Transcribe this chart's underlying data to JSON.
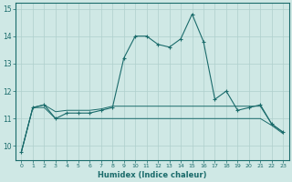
{
  "xlabel": "Humidex (Indice chaleur)",
  "xlim": [
    -0.5,
    23.5
  ],
  "ylim": [
    9.5,
    15.2
  ],
  "yticks": [
    10,
    11,
    12,
    13,
    14,
    15
  ],
  "xticks": [
    0,
    1,
    2,
    3,
    4,
    5,
    6,
    7,
    8,
    9,
    10,
    11,
    12,
    13,
    14,
    15,
    16,
    17,
    18,
    19,
    20,
    21,
    22,
    23
  ],
  "bg_color": "#cfe8e5",
  "line_color": "#1a6b6b",
  "grid_color": "#aecfcc",
  "series_main": [
    9.8,
    11.4,
    11.5,
    11.0,
    11.2,
    11.2,
    11.2,
    11.3,
    11.4,
    13.2,
    14.0,
    14.0,
    13.7,
    13.6,
    13.9,
    14.8,
    13.8,
    11.7,
    12.0,
    11.3,
    11.4,
    11.5,
    10.8,
    10.5
  ],
  "series_upper": [
    9.8,
    11.4,
    11.5,
    11.25,
    11.3,
    11.3,
    11.3,
    11.35,
    11.45,
    11.45,
    11.45,
    11.45,
    11.45,
    11.45,
    11.45,
    11.45,
    11.45,
    11.45,
    11.45,
    11.45,
    11.45,
    11.45,
    10.8,
    10.5
  ],
  "series_lower": [
    9.8,
    11.4,
    11.4,
    11.0,
    11.0,
    11.0,
    11.0,
    11.0,
    11.0,
    11.0,
    11.0,
    11.0,
    11.0,
    11.0,
    11.0,
    11.0,
    11.0,
    11.0,
    11.0,
    11.0,
    11.0,
    11.0,
    10.75,
    10.45
  ]
}
